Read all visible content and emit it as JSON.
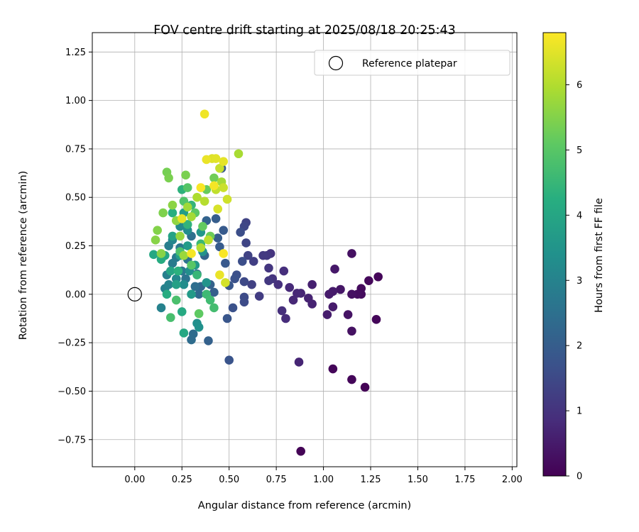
{
  "chart_data": {
    "type": "scatter",
    "title": "FOV centre drift starting at 2025/08/18 20:25:43",
    "xlabel": "Angular distance from reference (arcmin)",
    "ylabel": "Rotation from reference (arcmin)",
    "xlim": [
      -0.225,
      2.025
    ],
    "ylim": [
      -0.89,
      1.35
    ],
    "x_ticks": [
      0,
      0.25,
      0.5,
      0.75,
      1,
      1.25,
      1.5,
      1.75,
      2
    ],
    "x_tick_labels": [
      "0.00",
      "0.25",
      "0.50",
      "0.75",
      "1.00",
      "1.25",
      "1.50",
      "1.75",
      "2.00"
    ],
    "y_ticks": [
      -0.75,
      -0.5,
      -0.25,
      0,
      0.25,
      0.5,
      0.75,
      1,
      1.25
    ],
    "y_tick_labels": [
      "−0.75",
      "−0.50",
      "−0.25",
      "0.00",
      "0.25",
      "0.50",
      "0.75",
      "1.00",
      "1.25"
    ],
    "grid": true,
    "legend": {
      "position": "top-right",
      "entries": [
        "Reference platepar"
      ]
    },
    "reference_point": {
      "x": 0,
      "y": 0,
      "label": "Reference platepar"
    },
    "colorbar": {
      "label": "Hours from first FF file",
      "colormap": "viridis",
      "range": [
        0,
        6.8
      ],
      "ticks": [
        0,
        1,
        2,
        3,
        4,
        5,
        6
      ],
      "tick_labels": [
        "0",
        "1",
        "2",
        "3",
        "4",
        "5",
        "6"
      ]
    },
    "points": [
      [
        0.88,
        -0.81,
        0.05
      ],
      [
        1.05,
        -0.385,
        0.1
      ],
      [
        1.15,
        -0.44,
        0.1
      ],
      [
        1.22,
        -0.48,
        0.05
      ],
      [
        1.29,
        0.09,
        0.1
      ],
      [
        1.28,
        -0.13,
        0.1
      ],
      [
        1.24,
        0.07,
        0.15
      ],
      [
        1.2,
        0.03,
        0.2
      ],
      [
        1.2,
        0.0,
        0.2
      ],
      [
        1.18,
        0.0,
        0.25
      ],
      [
        1.15,
        0.0,
        0.3
      ],
      [
        1.15,
        0.21,
        0.3
      ],
      [
        1.15,
        -0.19,
        0.3
      ],
      [
        1.13,
        -0.105,
        0.35
      ],
      [
        1.09,
        0.025,
        0.4
      ],
      [
        1.06,
        0.13,
        0.45
      ],
      [
        1.05,
        -0.065,
        0.5
      ],
      [
        1.05,
        0.015,
        0.5
      ],
      [
        1.03,
        0.0,
        0.5
      ],
      [
        1.02,
        -0.105,
        0.55
      ],
      [
        0.94,
        0.05,
        0.6
      ],
      [
        0.94,
        -0.05,
        0.65
      ],
      [
        0.92,
        -0.02,
        0.65
      ],
      [
        0.88,
        0.005,
        0.7
      ],
      [
        0.87,
        -0.35,
        0.7
      ],
      [
        0.86,
        0.005,
        0.75
      ],
      [
        0.84,
        -0.03,
        0.75
      ],
      [
        0.82,
        0.035,
        0.8
      ],
      [
        0.8,
        -0.125,
        0.85
      ],
      [
        0.79,
        0.12,
        0.9
      ],
      [
        0.78,
        -0.085,
        0.9
      ],
      [
        0.76,
        0.05,
        0.95
      ],
      [
        0.73,
        0.08,
        1.0
      ],
      [
        0.72,
        0.21,
        1.0
      ],
      [
        0.71,
        0.135,
        1.05
      ],
      [
        0.7,
        0.2,
        1.1
      ],
      [
        0.71,
        0.07,
        1.1
      ],
      [
        0.68,
        0.2,
        1.15
      ],
      [
        0.66,
        -0.01,
        1.2
      ],
      [
        0.63,
        0.17,
        1.25
      ],
      [
        0.62,
        0.05,
        1.3
      ],
      [
        0.6,
        0.2,
        1.35
      ],
      [
        0.59,
        0.37,
        1.35
      ],
      [
        0.59,
        0.265,
        1.4
      ],
      [
        0.58,
        0.35,
        1.45
      ],
      [
        0.58,
        0.065,
        1.5
      ],
      [
        0.58,
        -0.015,
        1.55
      ],
      [
        0.58,
        -0.04,
        1.55
      ],
      [
        0.57,
        0.17,
        1.6
      ],
      [
        0.56,
        0.32,
        1.6
      ],
      [
        0.54,
        0.1,
        1.65
      ],
      [
        0.53,
        0.08,
        1.7
      ],
      [
        0.52,
        -0.07,
        1.7
      ],
      [
        0.5,
        -0.34,
        1.75
      ],
      [
        0.5,
        0.045,
        1.8
      ],
      [
        0.49,
        -0.125,
        1.8
      ],
      [
        0.48,
        0.16,
        1.85
      ],
      [
        0.47,
        0.33,
        1.9
      ],
      [
        0.46,
        0.65,
        1.9
      ],
      [
        0.45,
        0.245,
        1.95
      ],
      [
        0.44,
        0.29,
        2.0
      ],
      [
        0.43,
        0.39,
        2.0
      ],
      [
        0.42,
        0.01,
        2.05
      ],
      [
        0.4,
        0.05,
        2.1
      ],
      [
        0.39,
        -0.24,
        2.1
      ],
      [
        0.38,
        0.38,
        2.15
      ],
      [
        0.37,
        0.2,
        2.2
      ],
      [
        0.35,
        0.04,
        2.25
      ],
      [
        0.34,
        0.0,
        2.3
      ],
      [
        0.33,
        0.105,
        2.35
      ],
      [
        0.31,
        -0.205,
        2.4
      ],
      [
        0.3,
        -0.235,
        2.4
      ],
      [
        0.32,
        0.04,
        2.45
      ],
      [
        0.3,
        0.3,
        2.5
      ],
      [
        0.28,
        0.18,
        2.55
      ],
      [
        0.27,
        0.08,
        2.6
      ],
      [
        0.25,
        0.12,
        2.65
      ],
      [
        0.24,
        0.24,
        2.7
      ],
      [
        0.22,
        0.19,
        2.75
      ],
      [
        0.2,
        0.16,
        2.8
      ],
      [
        0.18,
        0.25,
        2.85
      ],
      [
        0.17,
        0.1,
        2.9
      ],
      [
        0.16,
        0.03,
        2.95
      ],
      [
        0.14,
        -0.07,
        3.0
      ],
      [
        0.18,
        0.05,
        3.05
      ],
      [
        0.2,
        0.28,
        3.1
      ],
      [
        0.22,
        0.08,
        3.15
      ],
      [
        0.24,
        0.35,
        3.2
      ],
      [
        0.26,
        0.05,
        3.25
      ],
      [
        0.28,
        0.33,
        3.3
      ],
      [
        0.29,
        0.12,
        3.35
      ],
      [
        0.33,
        -0.15,
        3.35
      ],
      [
        0.34,
        -0.17,
        3.4
      ],
      [
        0.36,
        0.22,
        3.45
      ],
      [
        0.38,
        0.06,
        3.5
      ],
      [
        0.35,
        0.32,
        3.55
      ],
      [
        0.32,
        0.15,
        3.6
      ],
      [
        0.3,
        0.0,
        3.65
      ],
      [
        0.28,
        0.25,
        3.7
      ],
      [
        0.26,
        0.42,
        3.75
      ],
      [
        0.24,
        0.2,
        3.8
      ],
      [
        0.22,
        0.05,
        3.85
      ],
      [
        0.2,
        0.3,
        3.9
      ],
      [
        0.19,
        0.12,
        3.95
      ],
      [
        0.16,
        0.2,
        4.0
      ],
      [
        0.1,
        0.205,
        4.05
      ],
      [
        0.26,
        -0.2,
        4.05
      ],
      [
        0.25,
        -0.09,
        4.1
      ],
      [
        0.14,
        0.18,
        4.15
      ],
      [
        0.17,
        0.0,
        4.2
      ],
      [
        0.2,
        0.42,
        4.25
      ],
      [
        0.23,
        0.12,
        4.3
      ],
      [
        0.25,
        0.54,
        4.35
      ],
      [
        0.28,
        0.36,
        4.4
      ],
      [
        0.3,
        0.46,
        4.45
      ],
      [
        0.33,
        0.1,
        4.5
      ],
      [
        0.35,
        0.26,
        4.55
      ],
      [
        0.38,
        0.0,
        4.6
      ],
      [
        0.4,
        -0.03,
        4.65
      ],
      [
        0.42,
        -0.07,
        4.7
      ],
      [
        0.19,
        -0.12,
        4.75
      ],
      [
        0.22,
        -0.03,
        4.8
      ],
      [
        0.24,
        0.22,
        4.85
      ],
      [
        0.26,
        0.48,
        4.9
      ],
      [
        0.28,
        0.55,
        4.95
      ],
      [
        0.3,
        0.15,
        5.0
      ],
      [
        0.32,
        0.42,
        5.05
      ],
      [
        0.34,
        -0.1,
        5.1
      ],
      [
        0.36,
        0.35,
        5.15
      ],
      [
        0.38,
        0.54,
        5.2
      ],
      [
        0.4,
        0.3,
        5.25
      ],
      [
        0.42,
        0.6,
        5.3
      ],
      [
        0.17,
        0.63,
        5.35
      ],
      [
        0.18,
        0.6,
        5.4
      ],
      [
        0.27,
        0.615,
        5.4
      ],
      [
        0.15,
        0.42,
        5.45
      ],
      [
        0.12,
        0.33,
        5.5
      ],
      [
        0.11,
        0.28,
        5.55
      ],
      [
        0.14,
        0.21,
        5.55
      ],
      [
        0.2,
        0.46,
        5.6
      ],
      [
        0.22,
        0.38,
        5.65
      ],
      [
        0.24,
        0.3,
        5.7
      ],
      [
        0.26,
        0.2,
        5.75
      ],
      [
        0.28,
        0.45,
        5.8
      ],
      [
        0.3,
        0.4,
        5.85
      ],
      [
        0.46,
        0.58,
        5.85
      ],
      [
        0.55,
        0.725,
        5.9
      ],
      [
        0.33,
        0.5,
        5.95
      ],
      [
        0.35,
        0.24,
        6.0
      ],
      [
        0.37,
        0.48,
        6.05
      ],
      [
        0.39,
        0.28,
        6.1
      ],
      [
        0.43,
        0.54,
        6.15
      ],
      [
        0.45,
        0.65,
        6.2
      ],
      [
        0.47,
        0.55,
        6.25
      ],
      [
        0.49,
        0.49,
        6.3
      ],
      [
        0.48,
        0.06,
        6.35
      ],
      [
        0.44,
        0.44,
        6.4
      ],
      [
        0.41,
        0.7,
        6.45
      ],
      [
        0.43,
        0.7,
        6.5
      ],
      [
        0.47,
        0.685,
        6.55
      ],
      [
        0.38,
        0.695,
        6.6
      ],
      [
        0.37,
        0.93,
        6.65
      ],
      [
        0.42,
        0.56,
        6.7
      ],
      [
        0.35,
        0.55,
        6.75
      ],
      [
        0.47,
        0.21,
        6.75
      ],
      [
        0.3,
        0.21,
        6.7
      ],
      [
        0.45,
        0.1,
        6.6
      ],
      [
        0.25,
        0.39,
        6.55
      ]
    ]
  }
}
